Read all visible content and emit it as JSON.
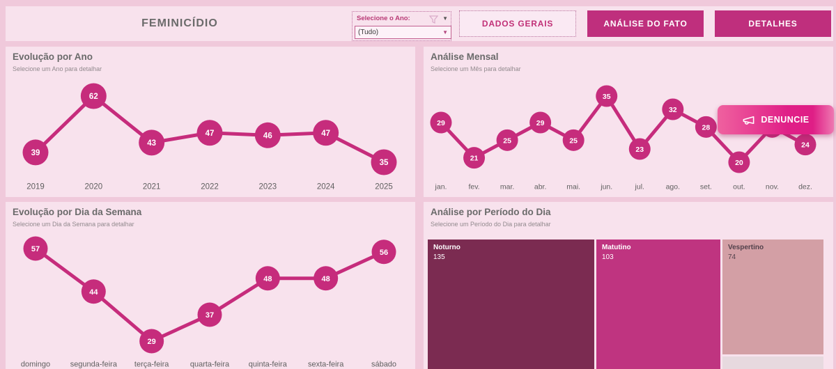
{
  "theme": {
    "page_bg": "#f0c9db",
    "panel_bg": "#f8e2ed",
    "accent": "#c62c7c",
    "button_bg": "#bf2f7d",
    "title_color": "#6a6a6a",
    "subtitle_color": "#928a8e",
    "axis_color": "#606060"
  },
  "header": {
    "title": "FEMINICÍDIO",
    "slicer": {
      "label": "Selecione o Ano:",
      "value": "(Tudo)"
    },
    "buttons": [
      {
        "label": "DADOS GERAIS",
        "active": true
      },
      {
        "label": "ANÁLISE DO FATO",
        "active": false
      },
      {
        "label": "DETALHES",
        "active": false
      }
    ]
  },
  "denuncie": {
    "label": "DENUNCIE"
  },
  "chart_data": [
    {
      "type": "line",
      "title": "Evolução por Ano",
      "subtitle": "Selecione um Ano para detalhar",
      "categories": [
        "2019",
        "2020",
        "2021",
        "2022",
        "2023",
        "2024",
        "2025"
      ],
      "values": [
        39,
        62,
        43,
        47,
        46,
        47,
        35
      ]
    },
    {
      "type": "line",
      "title": "Análise Mensal",
      "subtitle": "Selecione um Mês para detalhar",
      "categories": [
        "jan.",
        "fev.",
        "mar.",
        "abr.",
        "mai.",
        "jun.",
        "jul.",
        "ago.",
        "set.",
        "out.",
        "nov.",
        "dez."
      ],
      "values": [
        29,
        21,
        25,
        29,
        25,
        35,
        23,
        32,
        28,
        20,
        28,
        24
      ]
    },
    {
      "type": "line",
      "title": "Evolução por Dia da Semana",
      "subtitle": "Selecione um Dia da Semana para detalhar",
      "categories": [
        "domingo",
        "segunda-feira",
        "terça-feira",
        "quarta-feira",
        "quinta-feira",
        "sexta-feira",
        "sábado"
      ],
      "values": [
        57,
        44,
        29,
        37,
        48,
        48,
        56
      ]
    },
    {
      "type": "treemap",
      "title": "Análise por Período do Dia",
      "subtitle": "Selecione um Período do Dia para detalhar",
      "items": [
        {
          "label": "Noturno",
          "value": 135,
          "color": "#7b2b51",
          "text_color": "#ffffff"
        },
        {
          "label": "Matutino",
          "value": 103,
          "color": "#bf3480",
          "text_color": "#ffffff"
        },
        {
          "label": "Vespertino",
          "value": 74,
          "color": "#d39fa5",
          "text_color": "#52414b"
        },
        {
          "label": "",
          "value": null,
          "color": "#e7d9df",
          "text_color": "#52414b"
        }
      ]
    }
  ]
}
